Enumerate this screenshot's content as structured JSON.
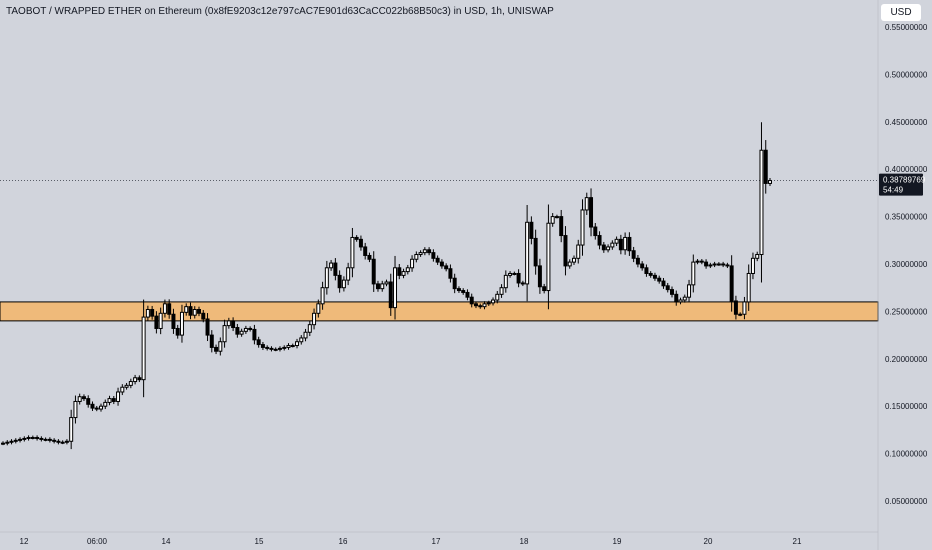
{
  "chart_data": {
    "type": "candlestick",
    "title": "TAOBOT / WRAPPED ETHER on Ethereum (0x8fE9203c12e797cAC7E901d63CaCC022b68B50c3) in USD, 1h, UNISWAP",
    "currency": "USD",
    "ylim": [
      0.0,
      0.56
    ],
    "y_ticks": [
      "0.05000000",
      "0.10000000",
      "0.15000000",
      "0.20000000",
      "0.25000000",
      "0.30000000",
      "0.35000000",
      "0.40000000",
      "0.45000000",
      "0.50000000",
      "0.55000000"
    ],
    "x_ticks": [
      "12",
      "06:00",
      "14",
      "15",
      "16",
      "17",
      "18",
      "19",
      "20",
      "21"
    ],
    "last_price": "0.38789769",
    "countdown": "54:49",
    "support_zone": {
      "low": 0.24,
      "high": 0.26,
      "color": "#efba7a"
    },
    "colors": {
      "background": "#d1d4dc",
      "candle": "#000000",
      "text": "#131722"
    },
    "close_series": [
      0.111,
      0.112,
      0.113,
      0.114,
      0.115,
      0.116,
      0.117,
      0.117,
      0.116,
      0.115,
      0.115,
      0.114,
      0.113,
      0.112,
      0.112,
      0.113,
      0.138,
      0.155,
      0.16,
      0.158,
      0.152,
      0.148,
      0.147,
      0.15,
      0.154,
      0.158,
      0.155,
      0.165,
      0.17,
      0.172,
      0.176,
      0.18,
      0.178,
      0.244,
      0.252,
      0.245,
      0.232,
      0.248,
      0.258,
      0.247,
      0.232,
      0.225,
      0.249,
      0.255,
      0.246,
      0.252,
      0.248,
      0.242,
      0.225,
      0.212,
      0.208,
      0.218,
      0.235,
      0.24,
      0.233,
      0.226,
      0.229,
      0.232,
      0.231,
      0.22,
      0.215,
      0.212,
      0.211,
      0.21,
      0.21,
      0.211,
      0.212,
      0.214,
      0.214,
      0.218,
      0.222,
      0.228,
      0.236,
      0.248,
      0.258,
      0.275,
      0.296,
      0.301,
      0.288,
      0.275,
      0.283,
      0.296,
      0.328,
      0.326,
      0.318,
      0.309,
      0.305,
      0.279,
      0.274,
      0.279,
      0.281,
      0.254,
      0.296,
      0.288,
      0.292,
      0.296,
      0.305,
      0.31,
      0.312,
      0.315,
      0.312,
      0.306,
      0.302,
      0.298,
      0.295,
      0.285,
      0.274,
      0.272,
      0.27,
      0.265,
      0.258,
      0.256,
      0.255,
      0.258,
      0.259,
      0.262,
      0.268,
      0.275,
      0.288,
      0.29,
      0.29,
      0.28,
      0.279,
      0.344,
      0.327,
      0.298,
      0.276,
      0.272,
      0.343,
      0.35,
      0.35,
      0.33,
      0.298,
      0.302,
      0.306,
      0.32,
      0.357,
      0.37,
      0.339,
      0.33,
      0.32,
      0.315,
      0.318,
      0.322,
      0.326,
      0.315,
      0.328,
      0.314,
      0.306,
      0.3,
      0.296,
      0.29,
      0.288,
      0.285,
      0.282,
      0.277,
      0.273,
      0.268,
      0.26,
      0.262,
      0.265,
      0.278,
      0.302,
      0.303,
      0.302,
      0.298,
      0.299,
      0.3,
      0.3,
      0.299,
      0.298,
      0.261,
      0.247,
      0.247,
      0.26,
      0.29,
      0.306,
      0.31,
      0.42,
      0.385,
      0.388
    ]
  }
}
